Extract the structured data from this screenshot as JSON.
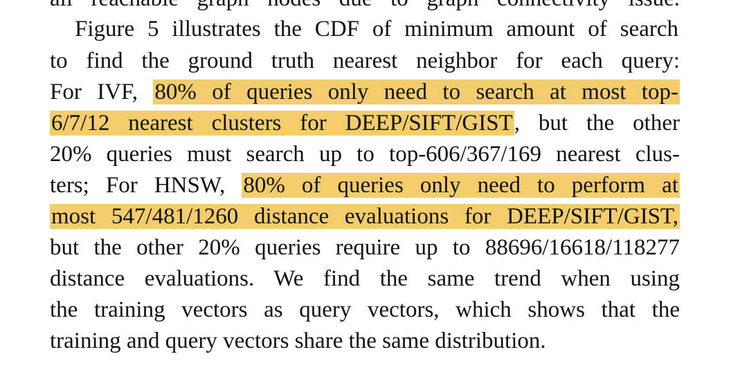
{
  "document": {
    "fragment_line": "all reachable graph nodes due to graph connectivity issue.",
    "paragraph": {
      "lines": [
        {
          "pre": "Figure 5 illustrates the CDF of minimum amount of search",
          "hl": "",
          "post": ""
        },
        {
          "pre": "to find the ground truth nearest neighbor for each query:",
          "hl": "",
          "post": ""
        },
        {
          "pre": "For IVF, ",
          "hl": "80% of queries only need to search at most top-",
          "post": ""
        },
        {
          "pre": "",
          "hl": "6/7/12 nearest clusters for DEEP/SIFT/GIST",
          "post": ", but the other"
        },
        {
          "pre": "20% queries must search up to top-606/367/169 nearest clus-",
          "hl": "",
          "post": ""
        },
        {
          "pre": "ters; For HNSW, ",
          "hl": "80% of queries only need to perform at",
          "post": ""
        },
        {
          "pre": "",
          "hl": "most 547/481/1260 distance evaluations for DEEP/SIFT/GIST,",
          "post": ""
        },
        {
          "pre": "but the other 20% queries require up to 88696/16618/118277",
          "hl": "",
          "post": ""
        },
        {
          "pre": "distance evaluations. We find the same trend when using",
          "hl": "",
          "post": ""
        },
        {
          "pre": "the training vectors as query vectors, which shows that the",
          "hl": "",
          "post": ""
        },
        {
          "pre": "training and query vectors share the same distribution.",
          "hl": "",
          "post": ""
        }
      ]
    },
    "highlight_color": "#f3cd6b"
  }
}
